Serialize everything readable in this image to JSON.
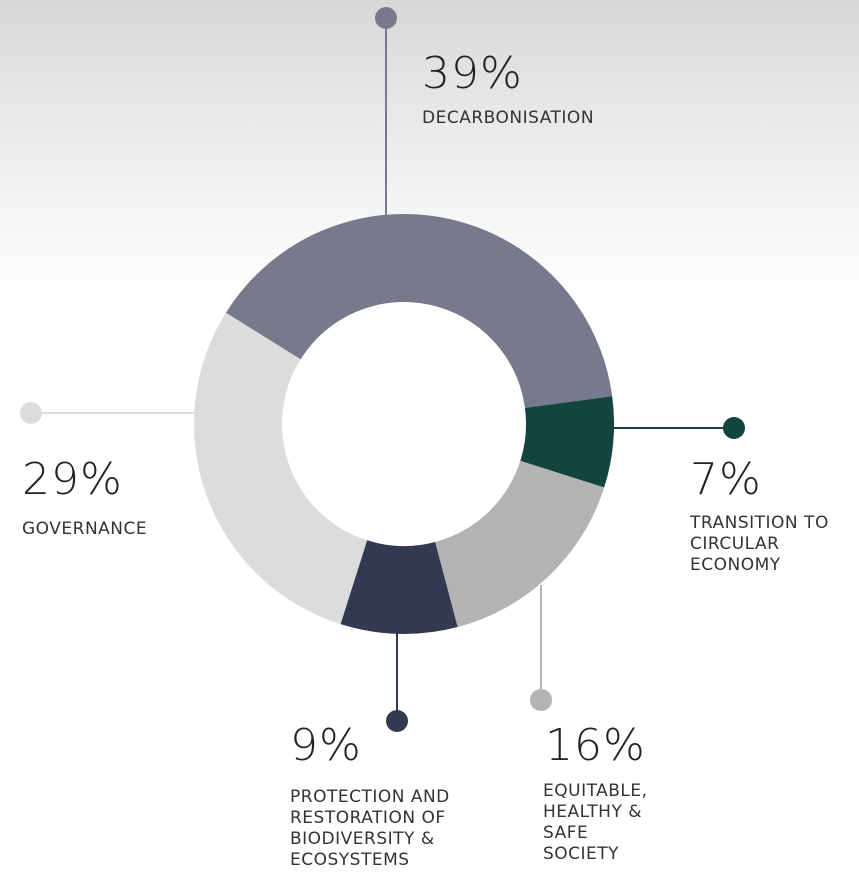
{
  "chart_data": {
    "type": "donut",
    "categories": [
      "DECARBONISATION",
      "TRANSITION TO CIRCULAR ECONOMY",
      "EQUITABLE, HEALTHY & SAFE SOCIETY",
      "PROTECTION AND RESTORATION OF BIODIVERSITY & ECOSYSTEMS",
      "GOVERNANCE"
    ],
    "values": [
      39,
      7,
      16,
      9,
      29
    ],
    "value_labels": [
      "39%",
      "7%",
      "16%",
      "9%",
      "29%"
    ],
    "colors": [
      "#767a8c",
      "#13443d",
      "#b3b3b3",
      "#333950",
      "#dcdcdc"
    ]
  }
}
